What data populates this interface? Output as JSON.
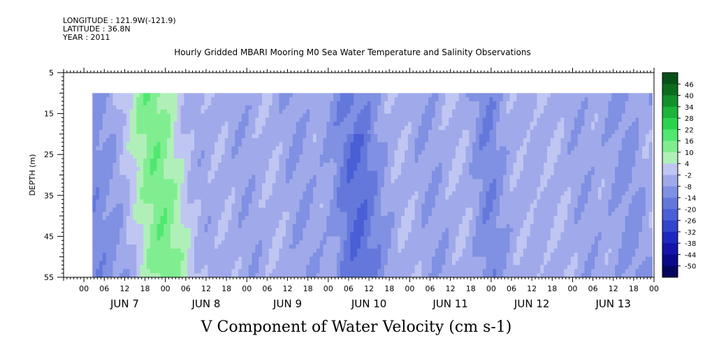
{
  "header": {
    "longitude": "LONGITUDE : 121.9W(-121.9)",
    "latitude": "LATITUDE : 36.8N",
    "year": "YEAR : 2011"
  },
  "chart_data": {
    "type": "heatmap",
    "title": "Hourly Gridded MBARI Mooring M0 Sea Water Temperature and Salinity Observations",
    "xlabel": "",
    "ylabel": "DEPTH (m)",
    "caption": "V Component of Water Velocity (cm s-1)",
    "y_axis": {
      "range": [
        5,
        55
      ],
      "ticks": [
        5,
        15,
        25,
        35,
        45,
        55
      ],
      "minor_step": 1,
      "inverted": true
    },
    "x_axis": {
      "start_hour": "2011-06-06T18:00",
      "end_hour": "2011-06-13T23:00",
      "hour_tick_labels": [
        "00",
        "06",
        "12",
        "18"
      ],
      "day_labels": [
        "JUN  7",
        "JUN  8",
        "JUN  9",
        "JUN 10",
        "JUN 11",
        "JUN 12",
        "JUN 13"
      ],
      "hour_labels_per_day": [
        "00",
        "06",
        "12",
        "18",
        "00",
        "06",
        "12",
        "18",
        "00",
        "06",
        "12",
        "18",
        "00",
        "06",
        "12",
        "18",
        "00",
        "06",
        "12",
        "18",
        "00",
        "06",
        "12",
        "18",
        "00",
        "06",
        "12",
        "18",
        "00"
      ]
    },
    "data_extent": {
      "depth_range": [
        10,
        55
      ],
      "time_start": "2011-06-07T03:00",
      "time_end": "2011-06-13T23:00"
    },
    "colorbar": {
      "levels": [
        46,
        40,
        34,
        28,
        22,
        16,
        10,
        4,
        -2,
        -8,
        -14,
        -20,
        -26,
        -32,
        -38,
        -44,
        -50
      ],
      "range": [
        -50,
        52
      ],
      "colors": [
        "#05055e",
        "#0a0a8a",
        "#1414aa",
        "#1e28c0",
        "#3044cc",
        "#4a5ed6",
        "#6478dc",
        "#8090e2",
        "#a0aaea",
        "#c0c6f2",
        "#b0f0b8",
        "#80ee90",
        "#50e870",
        "#2cd44e",
        "#1cb43a",
        "#12902c",
        "#0b6c1e",
        "#07501a"
      ]
    },
    "series_by_band": [
      {
        "depth_top": 10,
        "depth_bottom": 20,
        "pattern": "northward near Jun 7 early, Jun 8 morning, Jun 9 morning/afternoon, Jun 11 night, Jun 12 morning; southward elsewhere"
      },
      {
        "depth_top": 20,
        "depth_bottom": 55,
        "pattern": "strong northward Jun 7 06-18 deep; alternating weak north/south bands through Jun 13"
      }
    ],
    "grid": false,
    "legend": "right"
  }
}
